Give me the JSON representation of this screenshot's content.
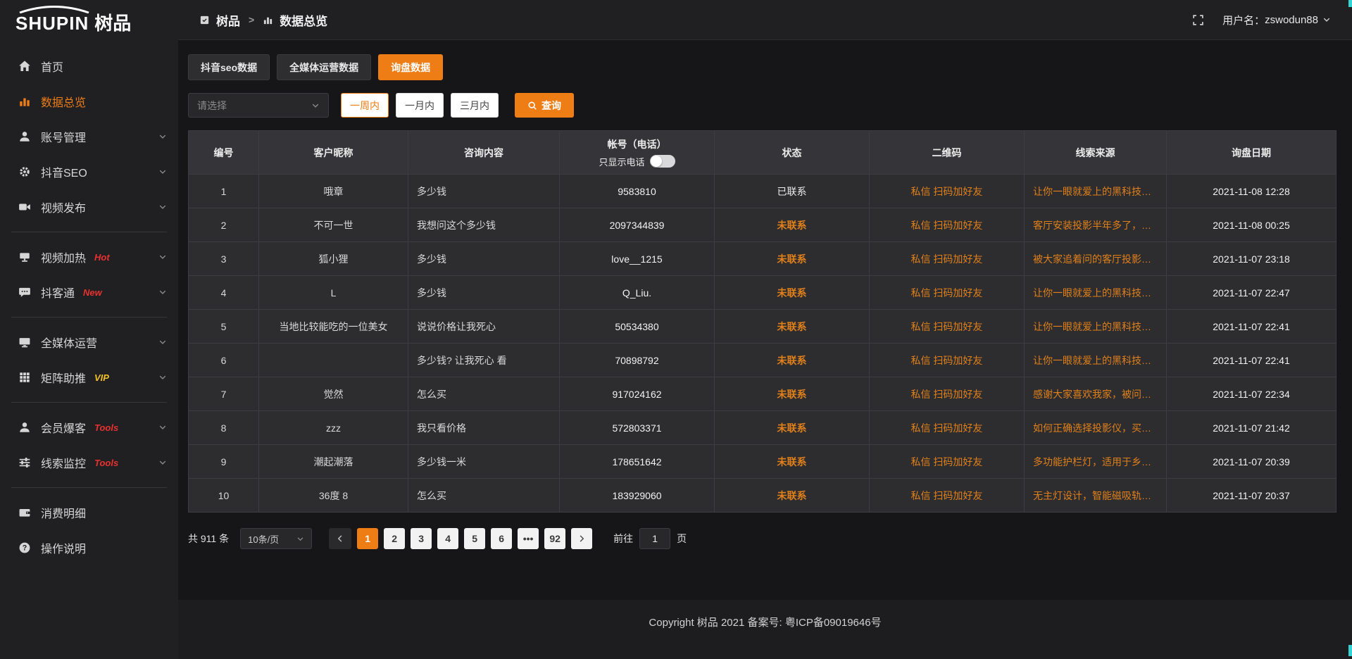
{
  "colors": {
    "accent": "#ed7d14",
    "orange_text": "#e0801a",
    "badge_hot": "#e8312f",
    "badge_vip": "#f0c027"
  },
  "brand": {
    "logo_en": "SHUPIN",
    "logo_cn": "树品"
  },
  "topbar": {
    "breadcrumb_root": "树品",
    "breadcrumb_sep": ">",
    "breadcrumb_current": "数据总览",
    "username_label": "用户名：",
    "username": "zswodun88"
  },
  "sidebar": {
    "items": [
      {
        "id": "home",
        "icon": "home",
        "label": "首页",
        "active": false,
        "chevron": false,
        "divider_after": false
      },
      {
        "id": "data",
        "icon": "chart",
        "label": "数据总览",
        "active": true,
        "chevron": false,
        "divider_after": false
      },
      {
        "id": "account",
        "icon": "user",
        "label": "账号管理",
        "active": false,
        "chevron": true,
        "divider_after": false
      },
      {
        "id": "seo",
        "icon": "gear",
        "label": "抖音SEO",
        "active": false,
        "chevron": true,
        "divider_after": false
      },
      {
        "id": "publish",
        "icon": "video",
        "label": "视频发布",
        "active": false,
        "chevron": true,
        "divider_after": true
      },
      {
        "id": "heat",
        "icon": "board",
        "label": "视频加热",
        "badge": "Hot",
        "badge_style": "red",
        "active": false,
        "chevron": true,
        "divider_after": false
      },
      {
        "id": "douketong",
        "icon": "chat",
        "label": "抖客通",
        "badge": "New",
        "badge_style": "red",
        "active": false,
        "chevron": true,
        "divider_after": true
      },
      {
        "id": "media",
        "icon": "monitor",
        "label": "全媒体运营",
        "active": false,
        "chevron": true,
        "divider_after": false
      },
      {
        "id": "matrix",
        "icon": "grid",
        "label": "矩阵助推",
        "badge": "VIP",
        "badge_style": "yellow",
        "active": false,
        "chevron": true,
        "divider_after": true
      },
      {
        "id": "member",
        "icon": "person",
        "label": "会员爆客",
        "badge": "Tools",
        "badge_style": "red",
        "active": false,
        "chevron": true,
        "divider_after": false
      },
      {
        "id": "monitor",
        "icon": "sliders",
        "label": "线索监控",
        "badge": "Tools",
        "badge_style": "red",
        "active": false,
        "chevron": true,
        "divider_after": true
      },
      {
        "id": "expense",
        "icon": "wallet",
        "label": "消费明细",
        "active": false,
        "chevron": false,
        "divider_after": false
      },
      {
        "id": "help",
        "icon": "help",
        "label": "操作说明",
        "active": false,
        "chevron": false,
        "divider_after": false
      }
    ]
  },
  "tabs": [
    {
      "id": "douyin-seo",
      "label": "抖音seo数据",
      "active": false
    },
    {
      "id": "media-data",
      "label": "全媒体运营数据",
      "active": false
    },
    {
      "id": "inquiry",
      "label": "询盘数据",
      "active": true
    }
  ],
  "filters": {
    "select_placeholder": "请选择",
    "range_buttons": [
      {
        "id": "week",
        "label": "一周内",
        "active": true
      },
      {
        "id": "month",
        "label": "一月内",
        "active": false
      },
      {
        "id": "quarter",
        "label": "三月内",
        "active": false
      }
    ],
    "search_label": "查询"
  },
  "table": {
    "columns": [
      {
        "key": "no",
        "label": "编号"
      },
      {
        "key": "nickname",
        "label": "客户昵称"
      },
      {
        "key": "content",
        "label": "咨询内容"
      },
      {
        "key": "account",
        "label": "帐号（电话）",
        "sub_label": "只显示电话"
      },
      {
        "key": "status",
        "label": "状态"
      },
      {
        "key": "qrcode",
        "label": "二维码"
      },
      {
        "key": "source",
        "label": "线索来源"
      },
      {
        "key": "date",
        "label": "询盘日期"
      }
    ],
    "rows": [
      {
        "no": "1",
        "nickname": "哦章",
        "content": "多少钱",
        "account": "9583810",
        "status": "已联系",
        "contacted": true,
        "qrcode": "私信 扫码加好友",
        "source": "让你一眼就爱上的黑科技，能...",
        "date": "2021-11-08 12:28"
      },
      {
        "no": "2",
        "nickname": "不可一世",
        "content": "我想问这个多少钱",
        "account": "2097344839",
        "status": "未联系",
        "contacted": false,
        "qrcode": "私信 扫码加好友",
        "source": "客厅安装投影半年多了，真实...",
        "date": "2021-11-08 00:25"
      },
      {
        "no": "3",
        "nickname": "狐小狸",
        "content": "多少钱",
        "account": "love__1215",
        "status": "未联系",
        "contacted": false,
        "qrcode": "私信 扫码加好友",
        "source": "被大家追着问的客厅投影分享...",
        "date": "2021-11-07 23:18"
      },
      {
        "no": "4",
        "nickname": "L",
        "content": "多少钱",
        "account": "Q_Liu.",
        "status": "未联系",
        "contacted": false,
        "qrcode": "私信 扫码加好友",
        "source": "让你一眼就爱上的黑科技，能...",
        "date": "2021-11-07 22:47"
      },
      {
        "no": "5",
        "nickname": "当地比较能吃的一位美女",
        "content": "说说价格让我死心",
        "account": "50534380",
        "status": "未联系",
        "contacted": false,
        "qrcode": "私信 扫码加好友",
        "source": "让你一眼就爱上的黑科技，能...",
        "date": "2021-11-07 22:41"
      },
      {
        "no": "6",
        "nickname": "",
        "content": "多少钱? 让我死心 看",
        "account": "70898792",
        "status": "未联系",
        "contacted": false,
        "qrcode": "私信 扫码加好友",
        "source": "让你一眼就爱上的黑科技，能...",
        "date": "2021-11-07 22:41"
      },
      {
        "no": "7",
        "nickname": "觉然",
        "content": "怎么买",
        "account": "917024162",
        "status": "未联系",
        "contacted": false,
        "qrcode": "私信 扫码加好友",
        "source": "感谢大家喜欢我家，被问了好...",
        "date": "2021-11-07 22:34"
      },
      {
        "no": "8",
        "nickname": "zzz",
        "content": "我只看价格",
        "account": "572803371",
        "status": "未联系",
        "contacted": false,
        "qrcode": "私信 扫码加好友",
        "source": "如何正确选择投影仪，买投影...",
        "date": "2021-11-07 21:42"
      },
      {
        "no": "9",
        "nickname": "潮起潮落",
        "content": "多少钱一米",
        "account": "178651642",
        "status": "未联系",
        "contacted": false,
        "qrcode": "私信 扫码加好友",
        "source": "多功能护栏灯，适用于乡村文...",
        "date": "2021-11-07 20:39"
      },
      {
        "no": "10",
        "nickname": "36度 8",
        "content": "怎么买",
        "account": "183929060",
        "status": "未联系",
        "contacted": false,
        "qrcode": "私信 扫码加好友",
        "source": "无主灯设计，智能磁吸轨道灯...",
        "date": "2021-11-07 20:37"
      }
    ]
  },
  "pagination": {
    "total_label": "共 911 条",
    "page_size": "10条/页",
    "pages": [
      "1",
      "2",
      "3",
      "4",
      "5",
      "6",
      "•••",
      "92"
    ],
    "active_page": "1",
    "ellipsis_label": "•••",
    "goto_label": "前往",
    "goto_value": "1",
    "goto_suffix": "页"
  },
  "footer": {
    "copyright": "Copyright 树品 2021 备案号: 粤ICP备09019646号"
  }
}
